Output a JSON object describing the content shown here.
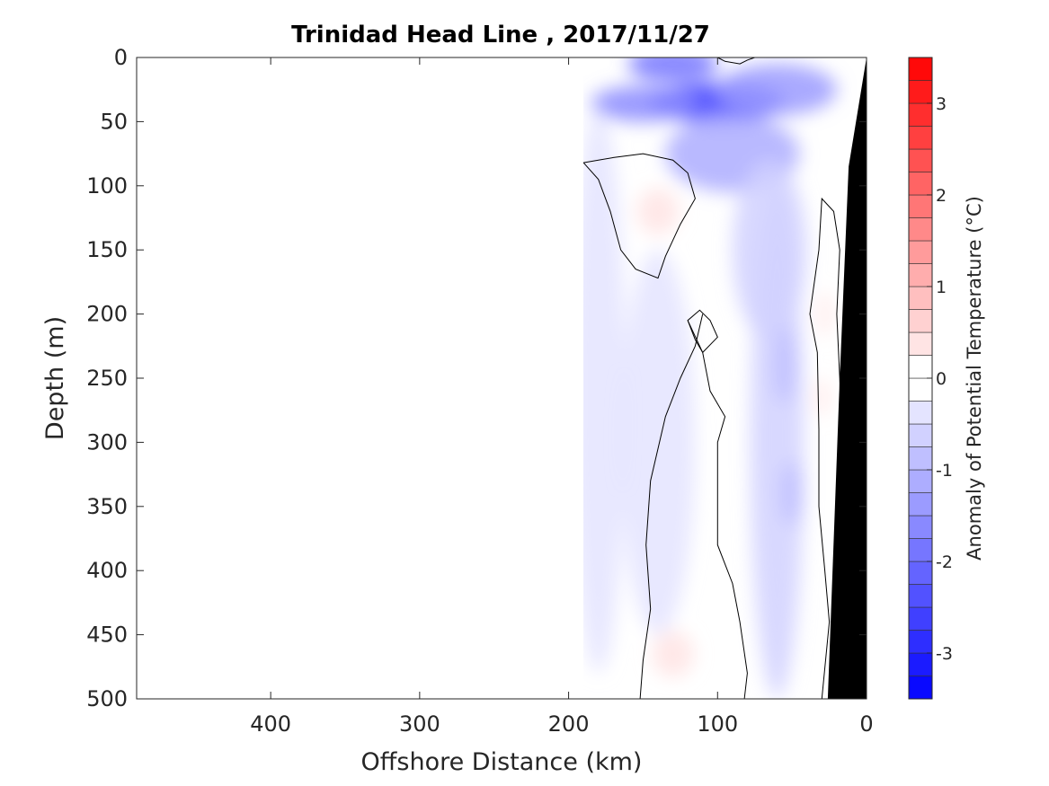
{
  "chart_data": {
    "type": "heatmap",
    "title": "Trinidad Head Line , 2017/11/27",
    "xlabel": "Offshore Distance (km)",
    "ylabel": "Depth (m)",
    "xlim": [
      490,
      0
    ],
    "ylim": [
      0,
      500
    ],
    "x_reversed": true,
    "y_reversed": true,
    "x_ticks": [
      400,
      300,
      200,
      100,
      0
    ],
    "y_ticks": [
      0,
      50,
      100,
      150,
      200,
      250,
      300,
      350,
      400,
      450,
      500
    ],
    "colorbar": {
      "label": "Anomaly of Potential Temperature (°C)",
      "range": [
        -3.5,
        3.5
      ],
      "ticks": [
        3,
        2,
        1,
        0,
        -1,
        -2,
        -3
      ],
      "step": 0.25,
      "colormap": "blue-white-red",
      "neg_color": "#0000ff",
      "pos_color": "#ff0000"
    },
    "data_extent_km": [
      190,
      0
    ],
    "zero_contour_color": "#000000",
    "bathymetry_color": "#000000",
    "bathymetry": [
      {
        "x": 0,
        "depth": 0
      },
      {
        "x": 12,
        "depth": 85
      },
      {
        "x": 18,
        "depth": 250
      },
      {
        "x": 26,
        "depth": 500
      }
    ],
    "anomaly_features": [
      {
        "x": 130,
        "depth": 5,
        "rx": 30,
        "ry": 14,
        "value": -1.8
      },
      {
        "x": 100,
        "depth": 35,
        "rx": 45,
        "ry": 16,
        "value": -2.6
      },
      {
        "x": 150,
        "depth": 36,
        "rx": 35,
        "ry": 14,
        "value": -1.7
      },
      {
        "x": 60,
        "depth": 25,
        "rx": 40,
        "ry": 20,
        "value": -1.4
      },
      {
        "x": 90,
        "depth": 75,
        "rx": 45,
        "ry": 30,
        "value": -1.1
      },
      {
        "x": 65,
        "depth": 150,
        "rx": 25,
        "ry": 70,
        "value": -0.7
      },
      {
        "x": 60,
        "depth": 300,
        "rx": 18,
        "ry": 200,
        "value": -0.55
      },
      {
        "x": 50,
        "depth": 340,
        "rx": 8,
        "ry": 25,
        "value": -0.85
      },
      {
        "x": 55,
        "depth": 240,
        "rx": 8,
        "ry": 30,
        "value": -0.8
      },
      {
        "x": 180,
        "depth": 260,
        "rx": 18,
        "ry": 220,
        "value": -0.35
      },
      {
        "x": 140,
        "depth": 300,
        "rx": 25,
        "ry": 150,
        "value": -0.3
      },
      {
        "x": 140,
        "depth": 120,
        "rx": 14,
        "ry": 18,
        "value": 0.35
      },
      {
        "x": 130,
        "depth": 465,
        "rx": 14,
        "ry": 18,
        "value": 0.35
      },
      {
        "x": 28,
        "depth": 200,
        "rx": 4,
        "ry": 18,
        "value": 0.35
      },
      {
        "x": 30,
        "depth": 265,
        "rx": 4,
        "ry": 15,
        "value": 0.3
      }
    ],
    "zero_contours": [
      [
        [
          190,
          82
        ],
        [
          180,
          95
        ],
        [
          172,
          120
        ],
        [
          165,
          150
        ],
        [
          155,
          165
        ],
        [
          140,
          172
        ],
        [
          135,
          155
        ],
        [
          125,
          130
        ],
        [
          115,
          110
        ],
        [
          120,
          90
        ],
        [
          130,
          80
        ],
        [
          150,
          75
        ],
        [
          170,
          78
        ],
        [
          190,
          82
        ]
      ],
      [
        [
          110,
          230
        ],
        [
          115,
          220
        ],
        [
          120,
          205
        ],
        [
          112,
          197
        ],
        [
          105,
          205
        ],
        [
          100,
          218
        ],
        [
          110,
          230
        ]
      ],
      [
        [
          110,
          200
        ],
        [
          115,
          225
        ],
        [
          125,
          250
        ],
        [
          135,
          280
        ],
        [
          145,
          330
        ],
        [
          148,
          380
        ],
        [
          145,
          430
        ],
        [
          150,
          470
        ],
        [
          152,
          500
        ]
      ],
      [
        [
          120,
          205
        ],
        [
          110,
          230
        ],
        [
          105,
          260
        ],
        [
          95,
          280
        ],
        [
          100,
          300
        ],
        [
          100,
          380
        ],
        [
          90,
          410
        ],
        [
          85,
          440
        ],
        [
          80,
          480
        ],
        [
          82,
          500
        ]
      ],
      [
        [
          30,
          500
        ],
        [
          25,
          440
        ],
        [
          28,
          400
        ],
        [
          32,
          350
        ],
        [
          32,
          290
        ],
        [
          33,
          230
        ],
        [
          38,
          200
        ],
        [
          32,
          150
        ],
        [
          30,
          110
        ],
        [
          22,
          120
        ],
        [
          18,
          150
        ],
        [
          20,
          200
        ],
        [
          18,
          250
        ],
        [
          17,
          300
        ],
        [
          18,
          350
        ],
        [
          20,
          400
        ],
        [
          18,
          450
        ],
        [
          24,
          500
        ]
      ],
      [
        [
          100,
          0
        ],
        [
          95,
          3
        ],
        [
          85,
          5
        ],
        [
          80,
          2
        ],
        [
          75,
          0
        ]
      ]
    ]
  }
}
